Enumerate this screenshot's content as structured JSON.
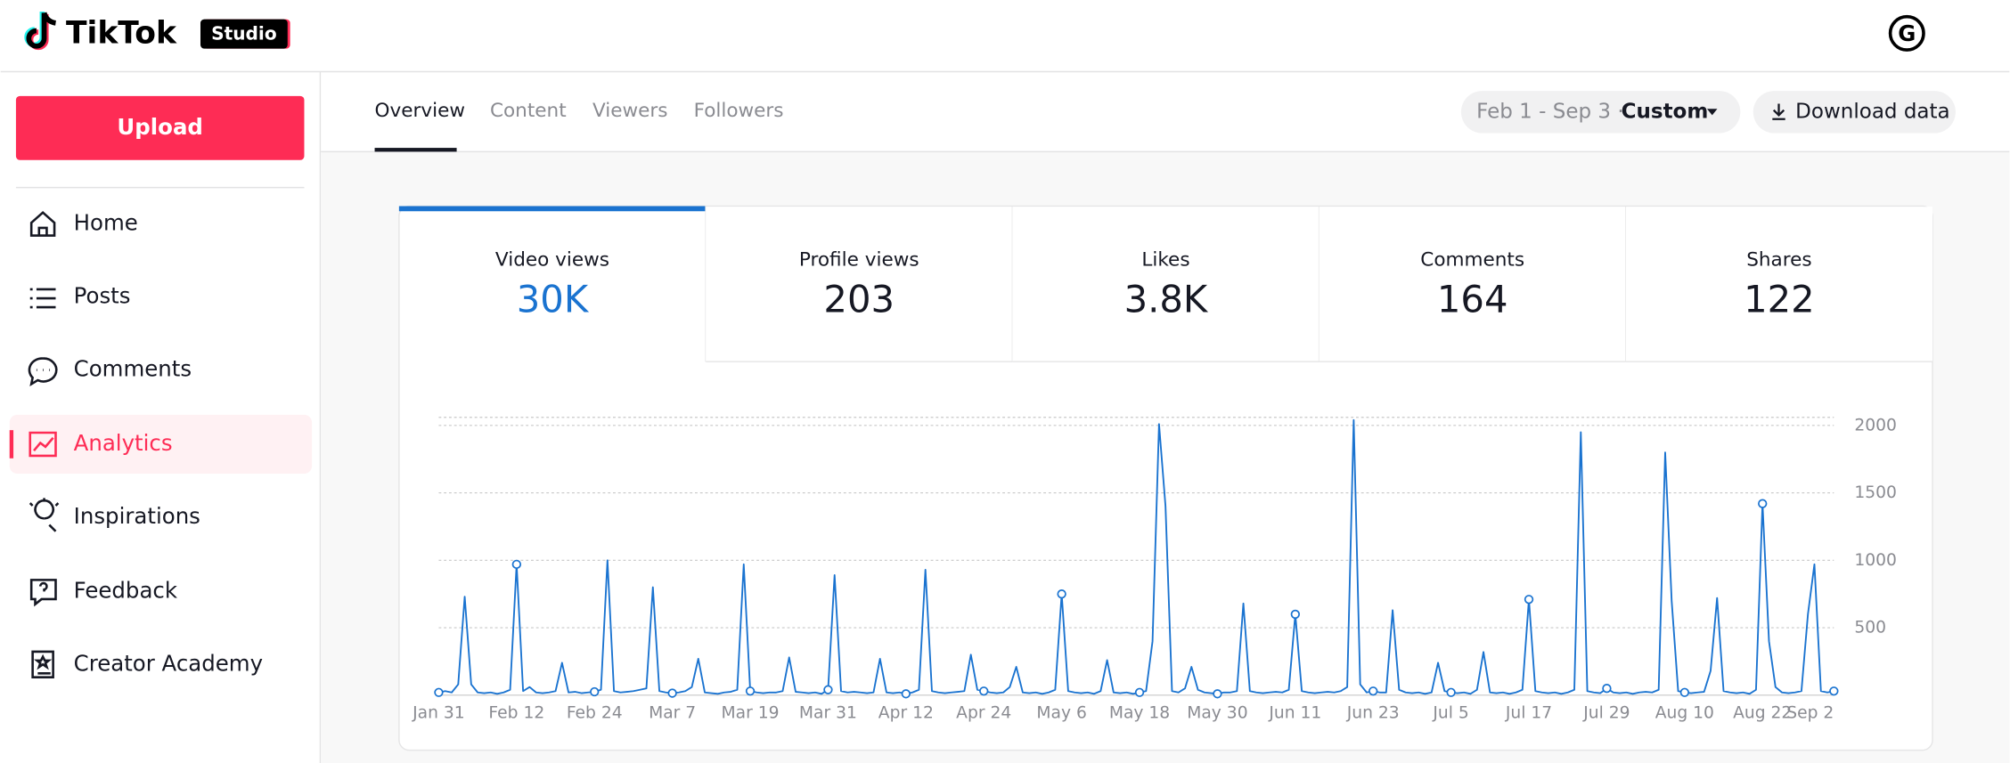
{
  "header": {
    "logo": "TikTok",
    "badge": "Studio",
    "avatar": "G"
  },
  "sidebar": {
    "upload": "Upload",
    "items": [
      "Home",
      "Posts",
      "Comments",
      "Analytics",
      "Inspirations",
      "Feedback",
      "Creator Academy"
    ]
  },
  "tabs": [
    "Overview",
    "Content",
    "Viewers",
    "Followers"
  ],
  "date_range": {
    "range": "Feb 1 - Sep 3 ·",
    "preset": "Custom"
  },
  "download": "Download data",
  "metrics": [
    {
      "label": "Video views",
      "value": "30K"
    },
    {
      "label": "Profile views",
      "value": "203"
    },
    {
      "label": "Likes",
      "value": "3.8K"
    },
    {
      "label": "Comments",
      "value": "164"
    },
    {
      "label": "Shares",
      "value": "122"
    }
  ],
  "chart_data": {
    "type": "line",
    "color": "#1a73d0",
    "grid": true,
    "ylim": [
      0,
      2060
    ],
    "yticks": [
      500,
      1000,
      1500,
      2000
    ],
    "categories": [
      "Jan 31",
      null,
      null,
      null,
      null,
      null,
      null,
      null,
      null,
      null,
      null,
      null,
      "Feb 12",
      null,
      null,
      null,
      null,
      null,
      null,
      null,
      null,
      null,
      null,
      null,
      "Feb 24",
      null,
      null,
      null,
      null,
      null,
      null,
      null,
      null,
      null,
      null,
      null,
      "Mar 7",
      null,
      null,
      null,
      null,
      null,
      null,
      null,
      null,
      null,
      null,
      null,
      "Mar 19",
      null,
      null,
      null,
      null,
      null,
      null,
      null,
      null,
      null,
      null,
      null,
      "Mar 31",
      null,
      null,
      null,
      null,
      null,
      null,
      null,
      null,
      null,
      null,
      null,
      "Apr 12",
      null,
      null,
      null,
      null,
      null,
      null,
      null,
      null,
      null,
      null,
      null,
      "Apr 24",
      null,
      null,
      null,
      null,
      null,
      null,
      null,
      null,
      null,
      null,
      null,
      "May 6",
      null,
      null,
      null,
      null,
      null,
      null,
      null,
      null,
      null,
      null,
      null,
      "May 18",
      null,
      null,
      null,
      null,
      null,
      null,
      null,
      null,
      null,
      null,
      null,
      "May 30",
      null,
      null,
      null,
      null,
      null,
      null,
      null,
      null,
      null,
      null,
      null,
      "Jun 11",
      null,
      null,
      null,
      null,
      null,
      null,
      null,
      null,
      null,
      null,
      null,
      "Jun 23",
      null,
      null,
      null,
      null,
      null,
      null,
      null,
      null,
      null,
      null,
      null,
      "Jul 5",
      null,
      null,
      null,
      null,
      null,
      null,
      null,
      null,
      null,
      null,
      null,
      "Jul 17",
      null,
      null,
      null,
      null,
      null,
      null,
      null,
      null,
      null,
      null,
      null,
      "Jul 29",
      null,
      null,
      null,
      null,
      null,
      null,
      null,
      null,
      null,
      null,
      null,
      "Aug 10",
      null,
      null,
      null,
      null,
      null,
      null,
      null,
      null,
      null,
      null,
      null,
      "Aug 22",
      null,
      null,
      null,
      null,
      null,
      null,
      null,
      null,
      null,
      null,
      "Sep 2"
    ],
    "values": [
      20,
      30,
      20,
      80,
      730,
      80,
      20,
      15,
      20,
      10,
      20,
      40,
      970,
      30,
      60,
      20,
      15,
      20,
      30,
      240,
      20,
      25,
      15,
      20,
      25,
      40,
      1000,
      30,
      20,
      25,
      30,
      40,
      50,
      800,
      30,
      20,
      15,
      20,
      30,
      60,
      270,
      20,
      15,
      10,
      20,
      25,
      40,
      970,
      30,
      20,
      15,
      20,
      20,
      30,
      280,
      25,
      20,
      15,
      20,
      10,
      40,
      890,
      30,
      20,
      25,
      20,
      15,
      20,
      270,
      20,
      15,
      20,
      10,
      20,
      40,
      930,
      30,
      20,
      15,
      20,
      25,
      30,
      300,
      40,
      30,
      20,
      15,
      20,
      60,
      210,
      20,
      15,
      20,
      10,
      20,
      40,
      750,
      30,
      20,
      15,
      20,
      10,
      30,
      260,
      20,
      15,
      20,
      10,
      20,
      30,
      400,
      2010,
      1400,
      30,
      20,
      50,
      210,
      40,
      20,
      15,
      10,
      20,
      20,
      30,
      680,
      30,
      20,
      15,
      20,
      25,
      20,
      40,
      600,
      30,
      20,
      15,
      20,
      25,
      20,
      30,
      60,
      2040,
      80,
      20,
      30,
      20,
      20,
      630,
      40,
      20,
      15,
      20,
      10,
      20,
      240,
      30,
      20,
      15,
      20,
      10,
      40,
      320,
      20,
      15,
      20,
      10,
      20,
      40,
      710,
      30,
      20,
      15,
      20,
      10,
      20,
      40,
      1950,
      30,
      20,
      15,
      50,
      20,
      15,
      20,
      10,
      20,
      25,
      20,
      40,
      1800,
      700,
      30,
      20,
      15,
      20,
      25,
      180,
      720,
      30,
      20,
      15,
      20,
      10,
      40,
      1420,
      400,
      60,
      20,
      15,
      20,
      30,
      600,
      970,
      30,
      20,
      30
    ]
  }
}
